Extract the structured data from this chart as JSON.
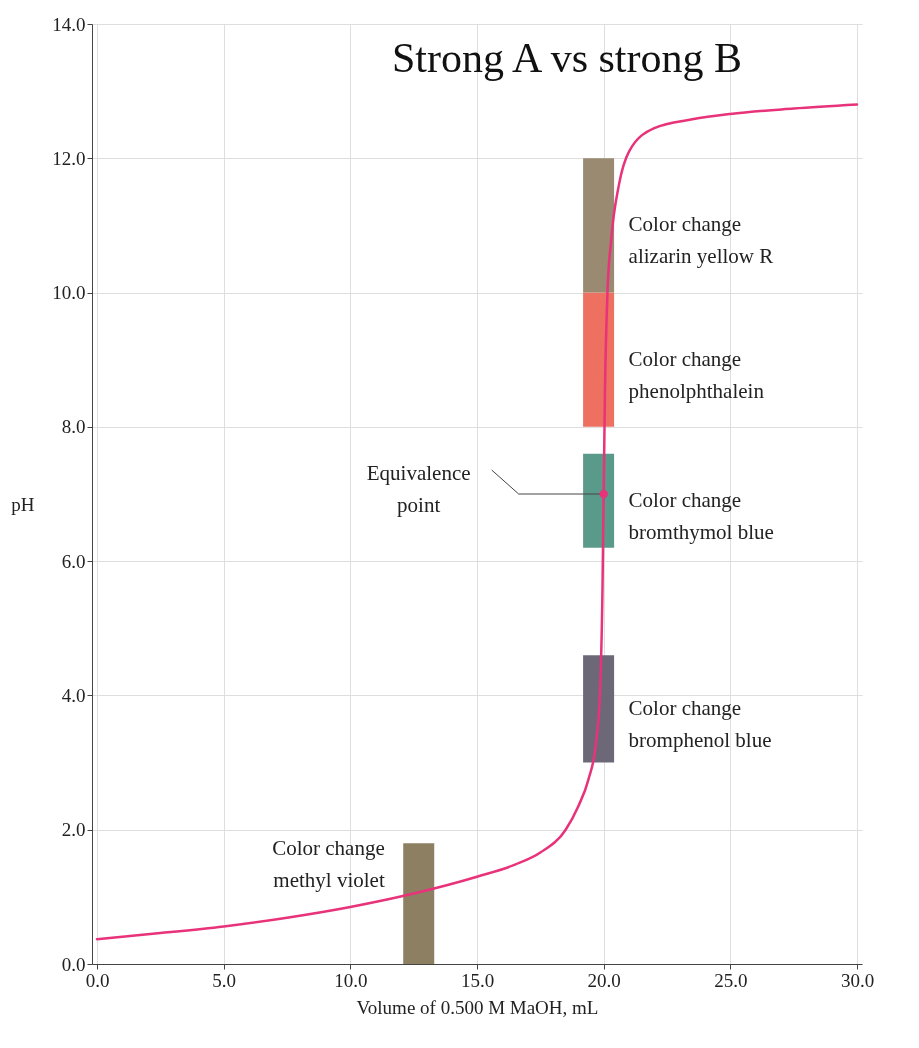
{
  "chart_data": {
    "type": "line",
    "title": "Strong A vs strong B",
    "xlabel": "Volume of 0.500 M MaOH, mL",
    "ylabel": "pH",
    "series": [
      {
        "color": "#e8327a",
        "x": [
          0,
          2.5,
          5,
          7.5,
          10,
          12.5,
          15,
          16.5,
          17.5,
          18.5,
          19,
          19.4,
          19.7,
          19.85,
          19.95,
          20,
          20.05,
          20.15,
          20.3,
          20.6,
          21,
          22,
          23.5,
          25,
          27.5,
          30
        ],
        "values": [
          0.37,
          0.46,
          0.56,
          0.69,
          0.85,
          1.05,
          1.3,
          1.48,
          1.66,
          2.0,
          2.35,
          2.75,
          3.3,
          4.0,
          5.5,
          7.0,
          8.5,
          10.0,
          10.8,
          11.6,
          12.1,
          12.45,
          12.58,
          12.66,
          12.74,
          12.8
        ]
      },
      {
        "type": "bar",
        "x": [
          12.7
        ],
        "base": [
          0
        ],
        "values": [
          1.8
        ],
        "color": "#8c7f62"
      },
      {
        "type": "bar",
        "x": [
          19.8
        ],
        "base": [
          3.0
        ],
        "values": [
          1.6
        ],
        "color": "#6c6878"
      },
      {
        "type": "bar",
        "x": [
          19.8
        ],
        "base": [
          6.2
        ],
        "values": [
          1.4
        ],
        "color": "#5a9a8a"
      },
      {
        "type": "bar",
        "x": [
          19.8
        ],
        "base": [
          8.0
        ],
        "values": [
          2.0
        ],
        "color": "#ee7060"
      },
      {
        "type": "bar",
        "x": [
          19.8
        ],
        "base": [
          10.0
        ],
        "values": [
          2.0
        ],
        "color": "#9a8a72"
      },
      {
        "type": "scatter",
        "color": "#e8327a",
        "x": [
          20
        ],
        "values": [
          7.0
        ],
        "marker": "circle"
      }
    ],
    "annotations": [
      "Color change\nmethyl violet",
      "Color change\nbromphenol blue",
      "Color change\nbromthymol blue",
      "Color change\nphenolphthalein",
      "Color change\nalizarin yellow R",
      "Equivalence\npoint"
    ],
    "xlim": [
      0,
      30
    ],
    "ylim": [
      0,
      14
    ],
    "xticks": [
      {
        "value": 0,
        "label": "0.0"
      },
      {
        "value": 5,
        "label": "5.0"
      },
      {
        "value": 10,
        "label": "10.0"
      },
      {
        "value": 15,
        "label": "15.0"
      },
      {
        "value": 20,
        "label": "20.0"
      },
      {
        "value": 25,
        "label": "25.0"
      },
      {
        "value": 30,
        "label": "30.0"
      }
    ],
    "yticks": [
      {
        "value": 0,
        "label": "0.0"
      },
      {
        "value": 2,
        "label": "2.0"
      },
      {
        "value": 4,
        "label": "4.0"
      },
      {
        "value": 6,
        "label": "6.0"
      },
      {
        "value": 8,
        "label": "8.0"
      },
      {
        "value": 10,
        "label": "10.0"
      },
      {
        "value": 12,
        "label": "12.0"
      },
      {
        "value": 14,
        "label": "14.0"
      }
    ],
    "grid": true
  }
}
